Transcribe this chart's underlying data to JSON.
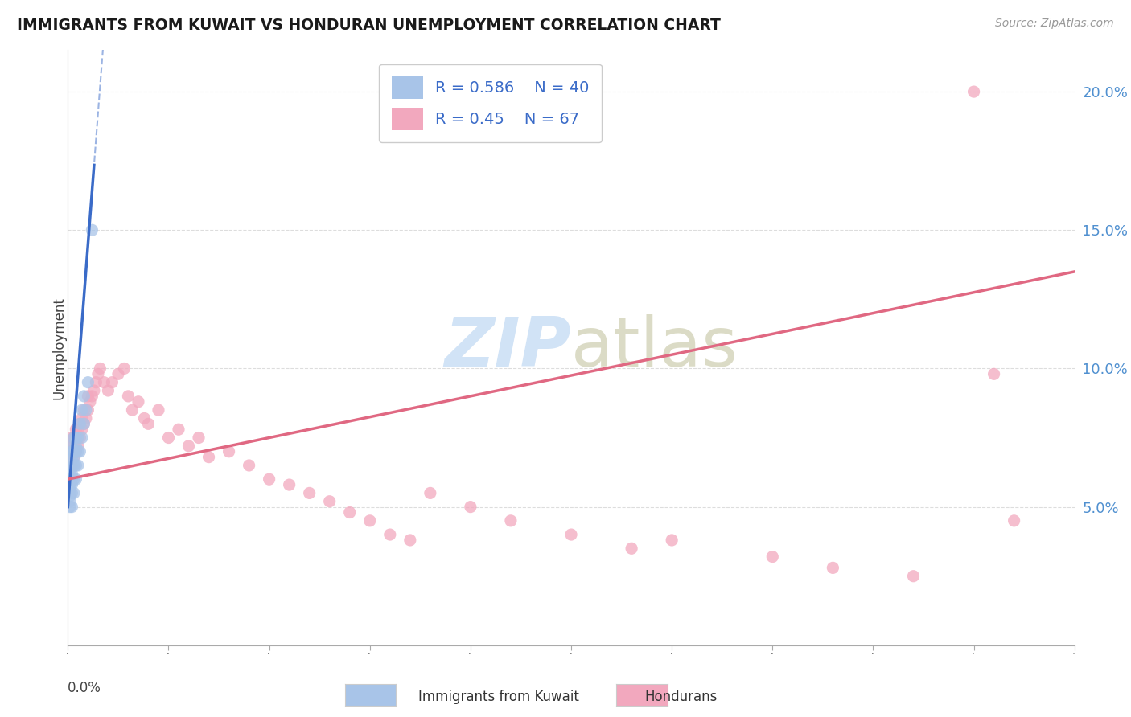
{
  "title": "IMMIGRANTS FROM KUWAIT VS HONDURAN UNEMPLOYMENT CORRELATION CHART",
  "source": "Source: ZipAtlas.com",
  "ylabel": "Unemployment",
  "y_ticks": [
    0.05,
    0.1,
    0.15,
    0.2
  ],
  "y_tick_labels": [
    "5.0%",
    "10.0%",
    "15.0%",
    "20.0%"
  ],
  "xlim": [
    0.0,
    0.5
  ],
  "ylim": [
    0.0,
    0.215
  ],
  "kuwait_R": 0.586,
  "kuwait_N": 40,
  "honduran_R": 0.45,
  "honduran_N": 67,
  "kuwait_color": "#a8c4e8",
  "honduran_color": "#f2a8be",
  "kuwait_line_color": "#3a6bc8",
  "honduran_line_color": "#e06882",
  "watermark_color": "#cce0f5",
  "legend_label_color": "#3a6bc8",
  "ytick_color": "#5090d0",
  "kuwait_x": [
    0.001,
    0.001,
    0.001,
    0.001,
    0.001,
    0.001,
    0.001,
    0.001,
    0.002,
    0.002,
    0.002,
    0.002,
    0.002,
    0.002,
    0.002,
    0.002,
    0.002,
    0.003,
    0.003,
    0.003,
    0.003,
    0.003,
    0.003,
    0.004,
    0.004,
    0.004,
    0.004,
    0.004,
    0.005,
    0.005,
    0.005,
    0.006,
    0.006,
    0.007,
    0.007,
    0.008,
    0.008,
    0.009,
    0.01,
    0.012
  ],
  "kuwait_y": [
    0.05,
    0.052,
    0.054,
    0.056,
    0.06,
    0.062,
    0.058,
    0.064,
    0.05,
    0.055,
    0.058,
    0.06,
    0.062,
    0.065,
    0.068,
    0.07,
    0.072,
    0.055,
    0.06,
    0.065,
    0.068,
    0.07,
    0.075,
    0.06,
    0.065,
    0.07,
    0.072,
    0.075,
    0.065,
    0.07,
    0.075,
    0.07,
    0.08,
    0.075,
    0.085,
    0.08,
    0.09,
    0.085,
    0.095,
    0.15
  ],
  "honduran_x": [
    0.001,
    0.001,
    0.001,
    0.002,
    0.002,
    0.002,
    0.003,
    0.003,
    0.003,
    0.004,
    0.004,
    0.004,
    0.005,
    0.005,
    0.006,
    0.006,
    0.007,
    0.007,
    0.008,
    0.008,
    0.009,
    0.01,
    0.01,
    0.011,
    0.012,
    0.013,
    0.014,
    0.015,
    0.016,
    0.018,
    0.02,
    0.022,
    0.025,
    0.028,
    0.03,
    0.032,
    0.035,
    0.038,
    0.04,
    0.045,
    0.05,
    0.055,
    0.06,
    0.065,
    0.07,
    0.08,
    0.09,
    0.1,
    0.11,
    0.12,
    0.13,
    0.14,
    0.15,
    0.16,
    0.17,
    0.18,
    0.2,
    0.22,
    0.25,
    0.28,
    0.3,
    0.35,
    0.38,
    0.42,
    0.45,
    0.46,
    0.47
  ],
  "honduran_y": [
    0.068,
    0.07,
    0.072,
    0.065,
    0.07,
    0.075,
    0.068,
    0.072,
    0.075,
    0.07,
    0.075,
    0.078,
    0.072,
    0.078,
    0.075,
    0.08,
    0.078,
    0.082,
    0.08,
    0.085,
    0.082,
    0.085,
    0.09,
    0.088,
    0.09,
    0.092,
    0.095,
    0.098,
    0.1,
    0.095,
    0.092,
    0.095,
    0.098,
    0.1,
    0.09,
    0.085,
    0.088,
    0.082,
    0.08,
    0.085,
    0.075,
    0.078,
    0.072,
    0.075,
    0.068,
    0.07,
    0.065,
    0.06,
    0.058,
    0.055,
    0.052,
    0.048,
    0.045,
    0.04,
    0.038,
    0.055,
    0.05,
    0.045,
    0.04,
    0.035,
    0.038,
    0.032,
    0.028,
    0.025,
    0.2,
    0.098,
    0.045
  ],
  "kuwait_line_x": [
    0.0,
    0.01
  ],
  "kuwait_line_y_start": 0.05,
  "kuwait_line_y_end": 0.145,
  "honduras_line_x": [
    0.0,
    0.5
  ],
  "honduras_line_y_start": 0.06,
  "honduras_line_y_end": 0.135
}
